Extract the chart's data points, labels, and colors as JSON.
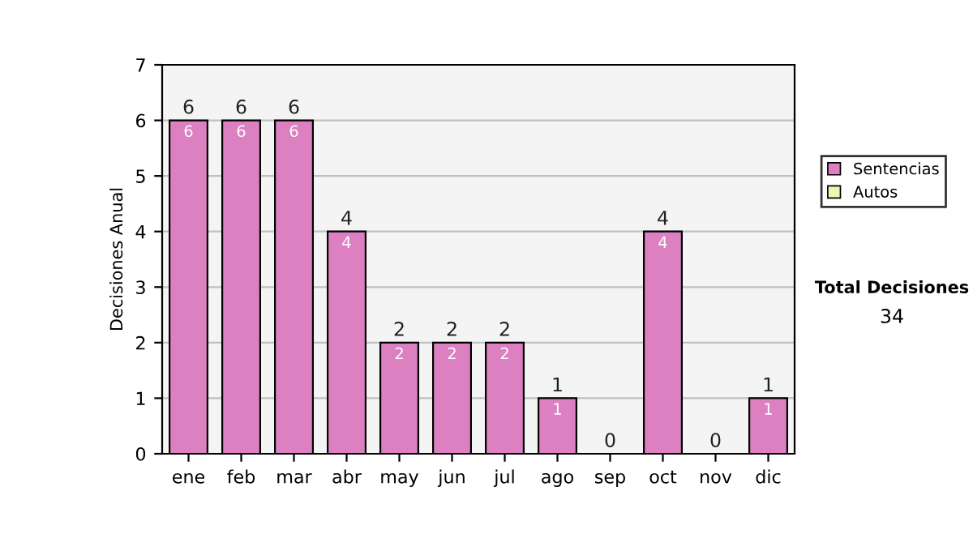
{
  "chart_data": {
    "type": "bar",
    "stacked": true,
    "ylabel": "Decisiones Anual",
    "categories": [
      "ene",
      "feb",
      "mar",
      "abr",
      "may",
      "jun",
      "jul",
      "ago",
      "sep",
      "oct",
      "nov",
      "dic"
    ],
    "series": [
      {
        "name": "Sentencias",
        "color": "#dd80c2",
        "values": [
          6,
          6,
          6,
          4,
          2,
          2,
          2,
          1,
          0,
          4,
          0,
          1
        ],
        "value_labels": [
          "6",
          "6",
          "6",
          "4",
          "2",
          "2",
          "2",
          "1",
          null,
          "4",
          null,
          "1"
        ]
      },
      {
        "name": "Autos",
        "color": "#eef5b0",
        "values": [
          null,
          null,
          null,
          null,
          null,
          null,
          null,
          null,
          null,
          null,
          null,
          null
        ]
      }
    ],
    "totals": [
      "6",
      "6",
      "6",
      "4",
      "2",
      "2",
      "2",
      "1",
      "0",
      "4",
      "0",
      "1"
    ],
    "ylim": [
      0,
      7
    ],
    "yticks": [
      0,
      1,
      2,
      3,
      4,
      5,
      6,
      7
    ],
    "grid": "y",
    "legend": "right",
    "annotations": [
      "Total Decisiones",
      "34"
    ]
  }
}
